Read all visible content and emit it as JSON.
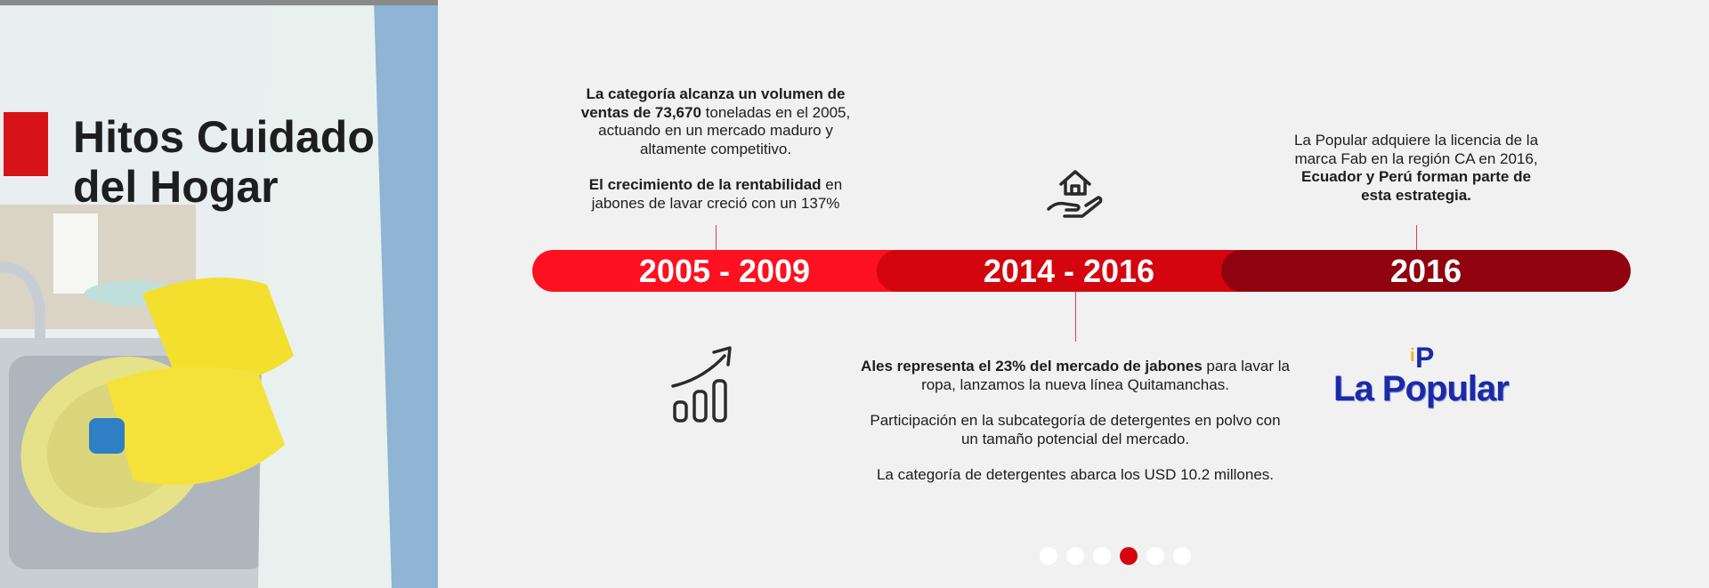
{
  "hero": {
    "title_line1": "Hitos Cuidado",
    "title_line2": "del Hogar"
  },
  "timeline": {
    "periods": [
      {
        "label": "2005 - 2009",
        "color": "#fd101f"
      },
      {
        "label": "2014 - 2016",
        "color": "#d4050f"
      },
      {
        "label": "2016",
        "color": "#8f020e"
      }
    ]
  },
  "milestones": {
    "m2005": {
      "p1_bold": "La categoría alcanza un volumen de ventas de 73,670",
      "p1_rest": " toneladas en el 2005, actuando en un mercado maduro y altamente competitivo.",
      "p2_bold": "El crecimiento de la rentabilidad",
      "p2_rest": " en jabones de lavar creció con un 137%"
    },
    "m2014": {
      "p1_bold": "Ales representa el 23% del mercado de jabones",
      "p1_rest": " para lavar la ropa, lanzamos la nueva línea Quitamanchas.",
      "p2": "Participación en la subcategoría de detergentes en polvo con un tamaño potencial del mercado.",
      "p3": "La categoría de detergentes abarca los USD 10.2 millones."
    },
    "m2016": {
      "p1_rest": "La Popular adquiere la licencia de la marca Fab en la región CA en 2016, ",
      "p1_bold": "Ecuador y Perú forman parte de esta estrategia."
    }
  },
  "icons": {
    "growth": "growth-chart-icon",
    "house": "house-in-hand-icon"
  },
  "logo": {
    "mark_i": "i",
    "mark_p": "P",
    "text": "La Popular"
  },
  "carousel": {
    "total": 6,
    "active": 4
  }
}
